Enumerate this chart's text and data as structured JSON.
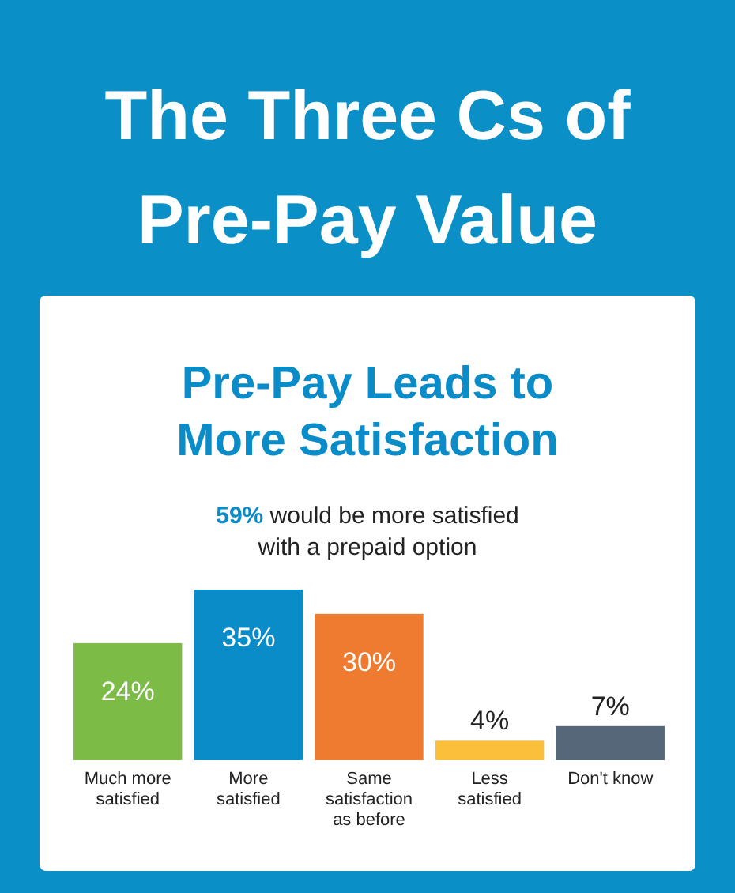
{
  "chart_data": {
    "type": "bar",
    "title": "The Three Cs of Pre-Pay Value",
    "subtitle": "Pre-Pay Leads to More Satisfaction",
    "annotations": [
      "59% would be more satisfied with a prepaid option"
    ],
    "categories": [
      "Much more satisfied",
      "More satisfied",
      "Same satisfaction as before",
      "Less satisfied",
      "Don't know"
    ],
    "values": [
      24,
      35,
      30,
      4,
      7
    ],
    "colors": [
      "#7dbb47",
      "#0a8cc9",
      "#ef7b30",
      "#fbbf3a",
      "#56677a"
    ],
    "value_labels": [
      "24%",
      "35%",
      "30%",
      "4%",
      "7%"
    ]
  }
}
